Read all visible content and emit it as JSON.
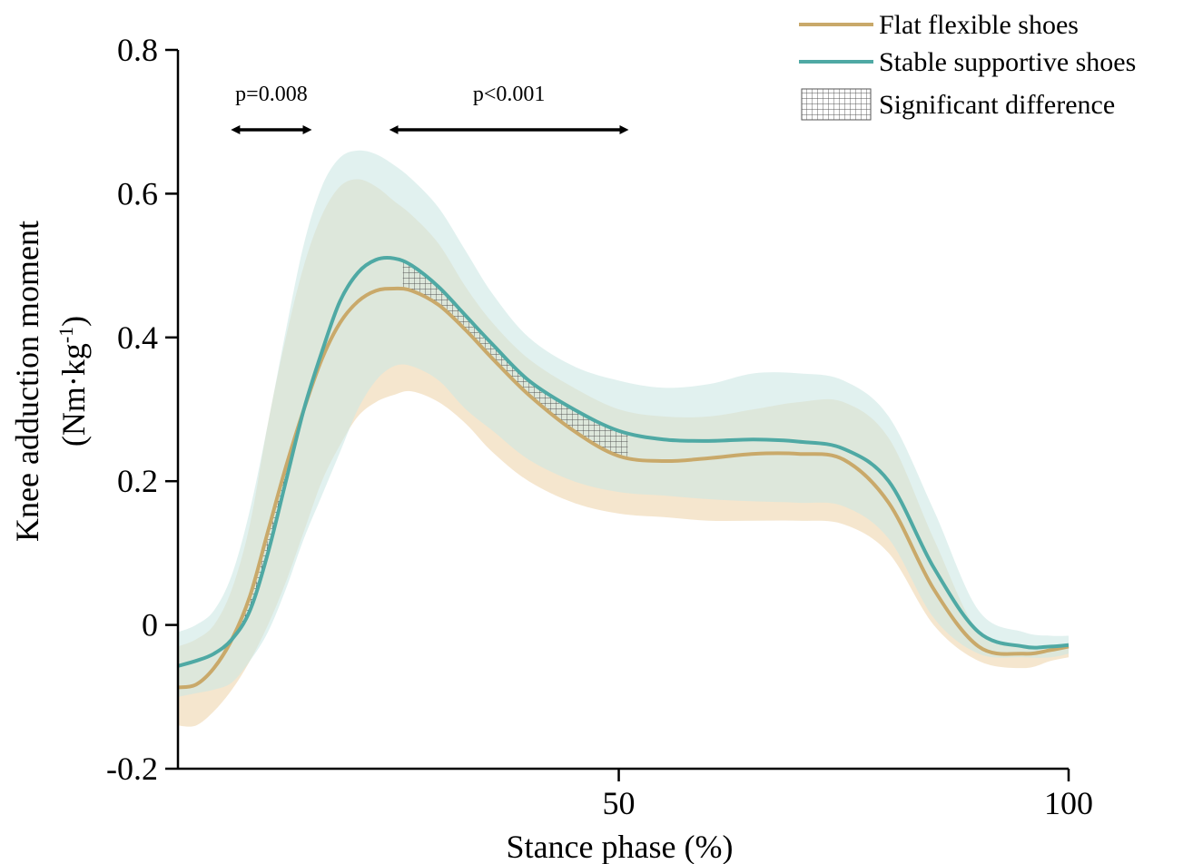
{
  "chart_data": {
    "type": "line",
    "xlabel": "Stance phase (%)",
    "ylabel_line1": "Knee adduction moment",
    "ylabel_line2_prefix": "(Nm·kg",
    "ylabel_line2_sup": "-1",
    "ylabel_line2_suffix": ")",
    "xlim": [
      1,
      100
    ],
    "ylim": [
      -0.2,
      0.8
    ],
    "x_ticks": [
      50,
      100
    ],
    "x_tick_labels": [
      "50",
      "100"
    ],
    "y_ticks": [
      -0.2,
      0,
      0.2,
      0.4,
      0.6,
      0.8
    ],
    "y_tick_labels": [
      "-0.2",
      "0",
      "0.2",
      "0.4",
      "0.6",
      "0.8"
    ],
    "grid": false,
    "legend_position": "top-right",
    "series": [
      {
        "name": "Flat flexible shoes",
        "color": "#C9A96A",
        "band_color": "#F2DDBE",
        "x": [
          1,
          3,
          5,
          7,
          9,
          11,
          13,
          15,
          17,
          19,
          21,
          23,
          25,
          27,
          30,
          33,
          36,
          40,
          45,
          50,
          55,
          60,
          65,
          70,
          75,
          80,
          85,
          90,
          95,
          98,
          100
        ],
        "mean": [
          -0.087,
          -0.083,
          -0.06,
          -0.02,
          0.04,
          0.13,
          0.22,
          0.3,
          0.37,
          0.42,
          0.45,
          0.465,
          0.468,
          0.465,
          0.445,
          0.41,
          0.37,
          0.32,
          0.27,
          0.235,
          0.228,
          0.232,
          0.238,
          0.238,
          0.23,
          0.17,
          0.05,
          -0.03,
          -0.04,
          -0.035,
          -0.03
        ],
        "upper": [
          -0.03,
          -0.02,
          0.0,
          0.05,
          0.14,
          0.28,
          0.4,
          0.5,
          0.57,
          0.61,
          0.62,
          0.61,
          0.59,
          0.57,
          0.53,
          0.47,
          0.42,
          0.37,
          0.33,
          0.3,
          0.29,
          0.29,
          0.3,
          0.31,
          0.31,
          0.26,
          0.12,
          -0.01,
          -0.03,
          -0.03,
          -0.025
        ],
        "lower": [
          -0.14,
          -0.14,
          -0.12,
          -0.09,
          -0.05,
          0.0,
          0.06,
          0.13,
          0.2,
          0.25,
          0.29,
          0.31,
          0.32,
          0.325,
          0.31,
          0.28,
          0.24,
          0.2,
          0.17,
          0.155,
          0.15,
          0.145,
          0.145,
          0.145,
          0.14,
          0.1,
          0.0,
          -0.05,
          -0.06,
          -0.05,
          -0.045
        ]
      },
      {
        "name": "Stable supportive shoes",
        "color": "#4FA9A4",
        "band_color": "#CDE8E5",
        "x": [
          1,
          3,
          5,
          7,
          9,
          11,
          13,
          15,
          17,
          19,
          21,
          23,
          25,
          27,
          30,
          33,
          36,
          40,
          45,
          50,
          55,
          60,
          65,
          70,
          75,
          80,
          85,
          90,
          95,
          98,
          100
        ],
        "mean": [
          -0.057,
          -0.05,
          -0.04,
          -0.02,
          0.02,
          0.1,
          0.2,
          0.3,
          0.38,
          0.45,
          0.49,
          0.508,
          0.51,
          0.5,
          0.47,
          0.43,
          0.39,
          0.34,
          0.3,
          0.27,
          0.258,
          0.256,
          0.258,
          0.255,
          0.245,
          0.2,
          0.08,
          -0.01,
          -0.03,
          -0.03,
          -0.028
        ],
        "upper": [
          -0.01,
          0.0,
          0.02,
          0.07,
          0.16,
          0.28,
          0.41,
          0.53,
          0.61,
          0.65,
          0.66,
          0.655,
          0.64,
          0.62,
          0.58,
          0.52,
          0.46,
          0.4,
          0.36,
          0.34,
          0.33,
          0.335,
          0.35,
          0.35,
          0.34,
          0.29,
          0.16,
          0.02,
          -0.01,
          -0.015,
          -0.015
        ],
        "lower": [
          -0.1,
          -0.095,
          -0.09,
          -0.08,
          -0.05,
          -0.01,
          0.05,
          0.12,
          0.18,
          0.24,
          0.3,
          0.34,
          0.36,
          0.36,
          0.34,
          0.3,
          0.27,
          0.23,
          0.2,
          0.185,
          0.18,
          0.175,
          0.172,
          0.17,
          0.165,
          0.12,
          0.01,
          -0.04,
          -0.045,
          -0.045,
          -0.04
        ]
      }
    ],
    "significant_regions": [
      {
        "x_start": 8,
        "x_end": 17,
        "label": "p=0.008"
      },
      {
        "x_start": 26,
        "x_end": 51,
        "label": "p<0.001"
      }
    ],
    "legend": {
      "series1": "Flat flexible shoes",
      "series2": "Stable supportive shoes",
      "hatch": "Significant difference"
    }
  }
}
